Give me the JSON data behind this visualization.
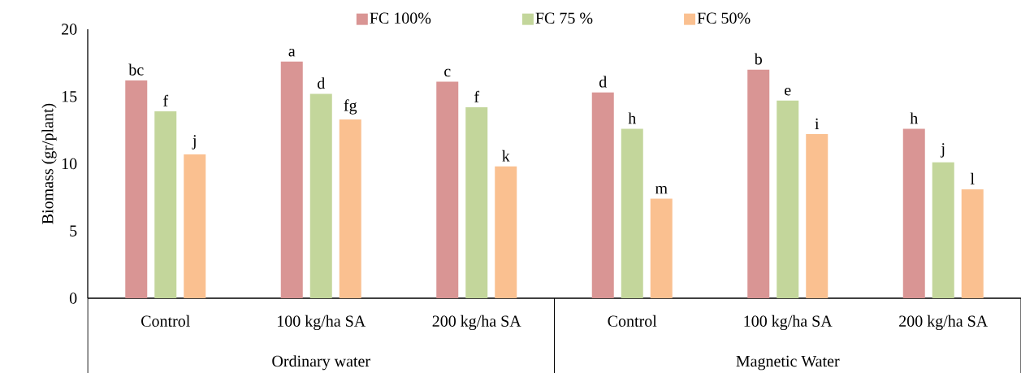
{
  "chart_data": {
    "type": "bar",
    "ylabel": "Biomass (gr/plant)",
    "categories": [
      "Control",
      "100 kg/ha SA",
      "200 kg/ha SA",
      "Control",
      "100 kg/ha SA",
      "200 kg/ha SA"
    ],
    "series": [
      {
        "name": "FC 100%",
        "color": "#d99594",
        "values": [
          16.2,
          17.6,
          16.1,
          15.3,
          17.0,
          12.6
        ],
        "value_labels": [
          "bc",
          "a",
          "c",
          "d",
          "b",
          "h"
        ]
      },
      {
        "name": "FC 75 %",
        "color": "#c3d69b",
        "values": [
          13.9,
          15.2,
          14.2,
          12.6,
          14.7,
          10.1
        ],
        "value_labels": [
          "f",
          "d",
          "f",
          "h",
          "e",
          "j"
        ]
      },
      {
        "name": "FC 50%",
        "color": "#fac090",
        "values": [
          10.7,
          13.3,
          9.8,
          7.4,
          12.2,
          8.1
        ],
        "value_labels": [
          "j",
          "fg",
          "k",
          "m",
          "i",
          "l"
        ]
      }
    ],
    "annotations": [
      "Ordinary water",
      "Magnetic Water"
    ],
    "ylim": [
      0,
      20
    ],
    "yticks": [
      0,
      5,
      10,
      15,
      20
    ],
    "legend": "top"
  }
}
